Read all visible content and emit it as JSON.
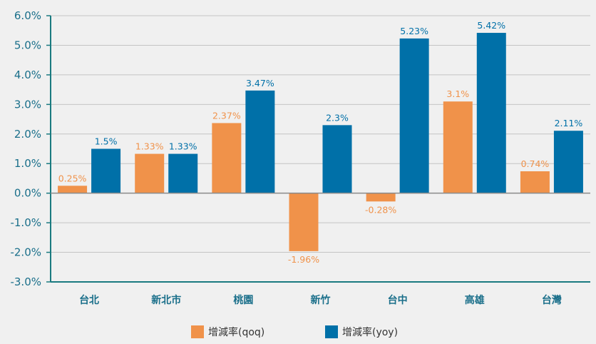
{
  "chart_data": {
    "type": "bar",
    "categories": [
      "台北",
      "新北市",
      "桃園",
      "新竹",
      "台中",
      "高雄",
      "台灣"
    ],
    "series": [
      {
        "name": "增減率(qoq)",
        "color": "#f0924a",
        "values": [
          0.25,
          1.33,
          2.37,
          -1.96,
          -0.28,
          3.1,
          0.74
        ],
        "labels": [
          "0.25%",
          "1.33%",
          "2.37%",
          "-1.96%",
          "-0.28%",
          "3.1%",
          "0.74%"
        ]
      },
      {
        "name": "增減率(yoy)",
        "color": "#0070a8",
        "values": [
          1.5,
          1.33,
          3.47,
          2.3,
          5.23,
          5.42,
          2.11
        ],
        "labels": [
          "1.5%",
          "1.33%",
          "3.47%",
          "2.3%",
          "5.23%",
          "5.42%",
          "2.11%"
        ]
      }
    ],
    "ylim": [
      -3.0,
      6.0
    ],
    "yticks": [
      6.0,
      5.0,
      4.0,
      3.0,
      2.0,
      1.0,
      0.0,
      -1.0,
      -2.0,
      -3.0
    ],
    "ytick_labels": [
      "6.0%",
      "5.0%",
      "4.0%",
      "3.0%",
      "2.0%",
      "1.0%",
      "0.0%",
      "-1.0%",
      "-2.0%",
      "-3.0%"
    ],
    "grid": true,
    "legend_position": "bottom",
    "colors": {
      "axis": "#1a7a80",
      "grid": "#c4c4c4",
      "tick_text": "#1a6f8a"
    }
  }
}
